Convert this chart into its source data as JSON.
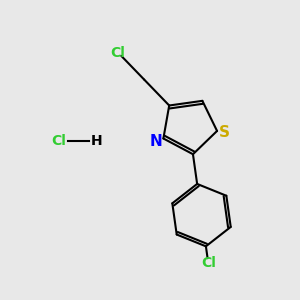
{
  "background_color": "#e8e8e8",
  "bond_color": "#000000",
  "atom_colors": {
    "Cl_top": "#32cd32",
    "Cl_bottom": "#32cd32",
    "Cl_hcl": "#32cd32",
    "N": "#0000ff",
    "S": "#ccaa00",
    "H": "#000000"
  },
  "figsize": [
    3.0,
    3.0
  ],
  "dpi": 100,
  "lw": 1.5,
  "fs": 10
}
